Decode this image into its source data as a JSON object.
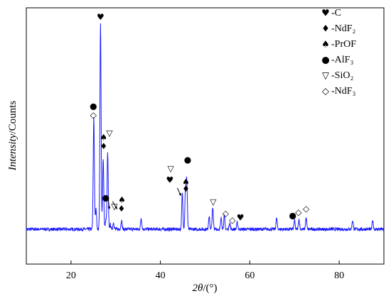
{
  "chart_data": {
    "type": "line",
    "xlabel_italic": "2θ",
    "xlabel_rest": "/(°)",
    "ylabel_italic": "Intensity",
    "ylabel_rest": "/Counts",
    "xlim": [
      10,
      90
    ],
    "ylim": [
      0,
      100
    ],
    "x_ticks": [
      20,
      40,
      60,
      80
    ],
    "y_ticks_labeled": false,
    "grid": false,
    "line_color": "#1a1aff",
    "baseline": 8,
    "peaks": [
      {
        "x": 25.1,
        "y": 58
      },
      {
        "x": 25.6,
        "y": 17
      },
      {
        "x": 26.6,
        "y": 100
      },
      {
        "x": 27.2,
        "y": 40
      },
      {
        "x": 27.8,
        "y": 12
      },
      {
        "x": 28.2,
        "y": 42
      },
      {
        "x": 28.8,
        "y": 10
      },
      {
        "x": 29.5,
        "y": 11
      },
      {
        "x": 31.3,
        "y": 12
      },
      {
        "x": 35.7,
        "y": 13
      },
      {
        "x": 44.9,
        "y": 24
      },
      {
        "x": 45.6,
        "y": 25
      },
      {
        "x": 45.9,
        "y": 30
      },
      {
        "x": 50.9,
        "y": 14
      },
      {
        "x": 51.7,
        "y": 18
      },
      {
        "x": 53.6,
        "y": 13
      },
      {
        "x": 54.3,
        "y": 14
      },
      {
        "x": 55.5,
        "y": 11
      },
      {
        "x": 57.2,
        "y": 11
      },
      {
        "x": 66.0,
        "y": 13
      },
      {
        "x": 70.0,
        "y": 12
      },
      {
        "x": 71.0,
        "y": 12.5
      },
      {
        "x": 72.6,
        "y": 13
      },
      {
        "x": 83.0,
        "y": 12
      },
      {
        "x": 87.5,
        "y": 12
      }
    ],
    "legend": [
      {
        "symbol": "♥",
        "label": "-C"
      },
      {
        "symbol": "♦",
        "label": "-NdF₂"
      },
      {
        "symbol": "♠",
        "label": "-PrOF"
      },
      {
        "symbol": "●",
        "label": "-AlF₃"
      },
      {
        "symbol": "▽",
        "label": "-SiO₂"
      },
      {
        "symbol": "◇",
        "label": "-NdF₃"
      }
    ],
    "annotations": [
      {
        "symbol": "♥",
        "x": 26.6,
        "y": 103
      },
      {
        "symbol": "●",
        "x": 25.0,
        "y": 63
      },
      {
        "symbol": "◇",
        "x": 25.0,
        "y": 59
      },
      {
        "symbol": "♠",
        "x": 27.3,
        "y": 49
      },
      {
        "symbol": "♦",
        "x": 27.3,
        "y": 45
      },
      {
        "symbol": "▽",
        "x": 28.6,
        "y": 51
      },
      {
        "symbol": "●",
        "x": 27.8,
        "y": 22
      },
      {
        "symbol": "▽",
        "x": 29.7,
        "y": 18
      },
      {
        "symbol": "♠",
        "x": 31.4,
        "y": 21
      },
      {
        "symbol": "♦",
        "x": 31.3,
        "y": 17
      },
      {
        "symbol": "▽",
        "x": 42.3,
        "y": 35
      },
      {
        "symbol": "♥",
        "x": 42.1,
        "y": 30
      },
      {
        "symbol": "♠",
        "x": 45.7,
        "y": 29
      },
      {
        "symbol": "♦",
        "x": 45.7,
        "y": 26
      },
      {
        "symbol": "●",
        "x": 46.1,
        "y": 39
      },
      {
        "symbol": "▽",
        "x": 51.8,
        "y": 20
      },
      {
        "symbol": "◇",
        "x": 54.6,
        "y": 15
      },
      {
        "symbol": "◇",
        "x": 56.1,
        "y": 12
      },
      {
        "symbol": "♥",
        "x": 57.9,
        "y": 13
      },
      {
        "symbol": "●",
        "x": 69.6,
        "y": 14
      },
      {
        "symbol": "◇",
        "x": 70.9,
        "y": 15.5
      },
      {
        "symbol": "◇",
        "x": 72.6,
        "y": 17
      }
    ],
    "arrows": [
      {
        "from_x": 29.3,
        "from_y": 20.5,
        "to_x": 30.3,
        "to_y": 17
      },
      {
        "from_x": 43.8,
        "from_y": 26.5,
        "to_x": 44.6,
        "to_y": 23
      },
      {
        "from_x": 28.3,
        "from_y": 21.5,
        "to_x": 28.6,
        "to_y": 17
      }
    ]
  }
}
